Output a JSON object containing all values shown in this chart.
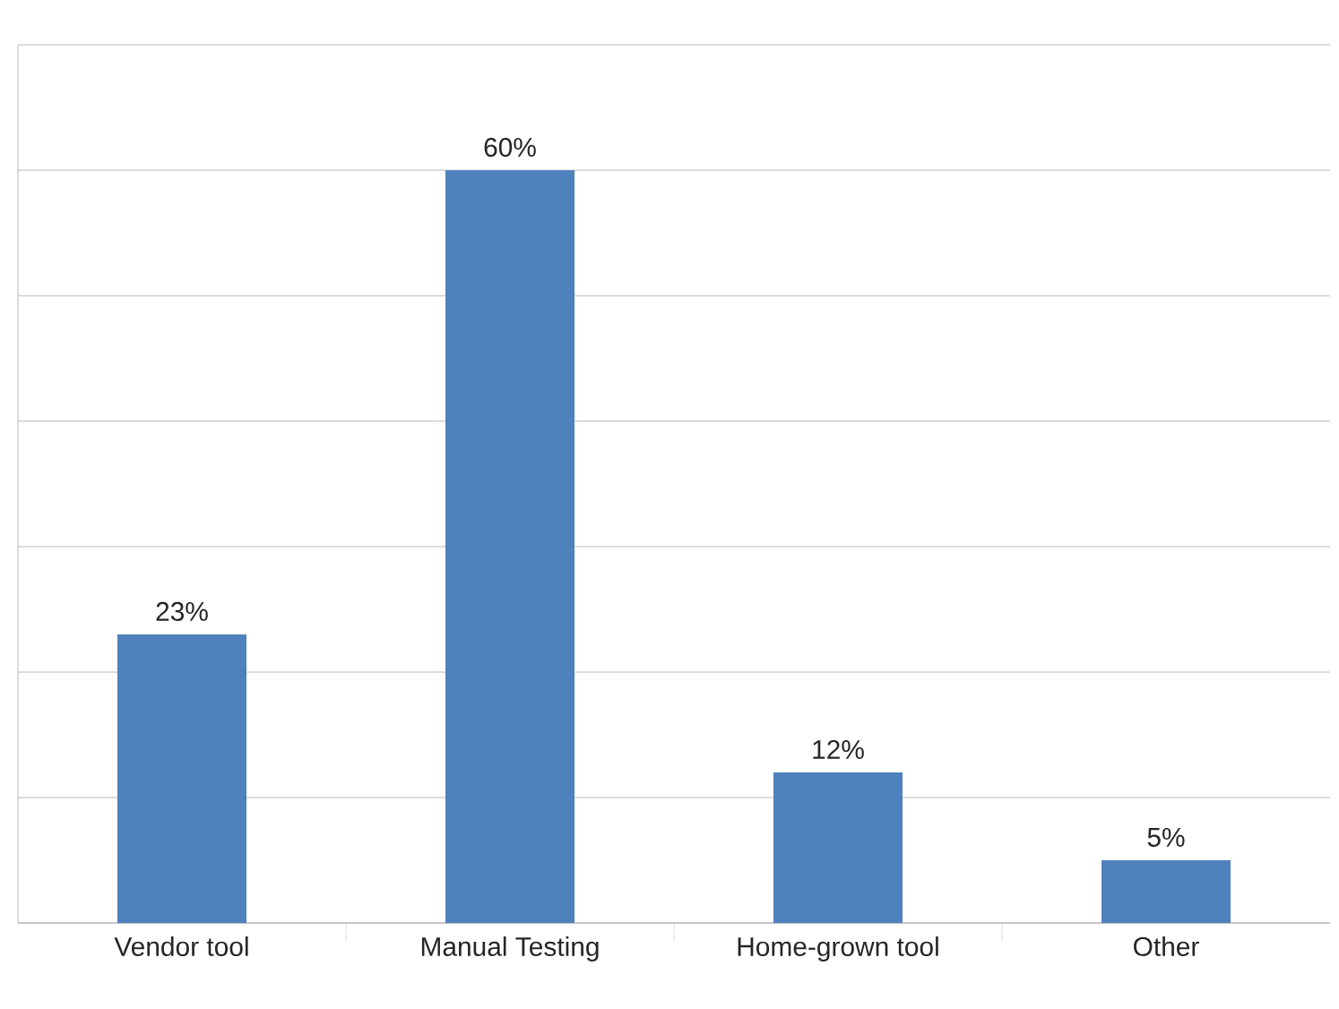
{
  "chart_data": {
    "type": "bar",
    "categories": [
      "Vendor tool",
      "Manual Testing",
      "Home-grown tool",
      "Other"
    ],
    "values": [
      23,
      60,
      12,
      5
    ],
    "value_labels": [
      "23%",
      "60%",
      "12%",
      "5%"
    ],
    "color": "#4f81bd",
    "ylim": [
      0,
      70
    ],
    "yticks": [
      {
        "value": 0,
        "label": null
      },
      {
        "value": 10,
        "label": null
      },
      {
        "value": 20,
        "label": null
      },
      {
        "value": 30,
        "label": null
      },
      {
        "value": 40,
        "label": null
      },
      {
        "value": 50,
        "label": null
      },
      {
        "value": 60,
        "label": null
      },
      {
        "value": 70,
        "label": null
      }
    ],
    "grid": "y"
  }
}
